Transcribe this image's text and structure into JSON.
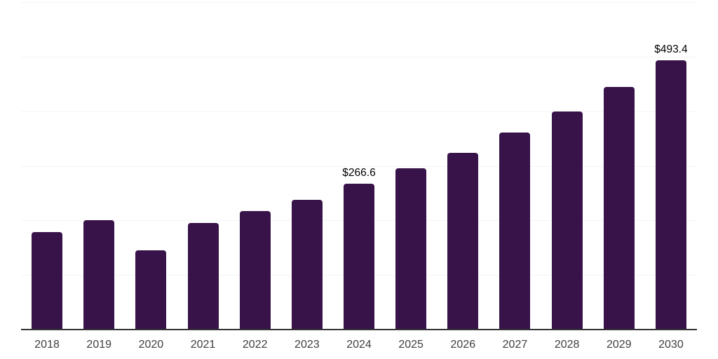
{
  "chart_data": {
    "type": "bar",
    "title": "",
    "xlabel": "",
    "ylabel": "",
    "categories": [
      "2018",
      "2019",
      "2020",
      "2021",
      "2022",
      "2023",
      "2024",
      "2025",
      "2026",
      "2027",
      "2028",
      "2029",
      "2030"
    ],
    "values": [
      179,
      200,
      145,
      195,
      217,
      238,
      266.6,
      295,
      324,
      361,
      400,
      445,
      493.4
    ],
    "annotations": [
      {
        "category": "2024",
        "text": "$266.6",
        "value": 266.6
      },
      {
        "category": "2030",
        "text": "$493.4",
        "value": 493.4
      }
    ],
    "ylim": [
      0,
      600
    ],
    "grid_step": 100,
    "grid": "horizontal-only",
    "y_tick_labels_visible": false,
    "legend": "none"
  },
  "colors": {
    "background": "#ffffff",
    "bar": "#381349",
    "gridline": "#f4f4f4",
    "axis_line": "#333333",
    "tick_label": "#3f3f3f",
    "value_label": "#000000"
  }
}
